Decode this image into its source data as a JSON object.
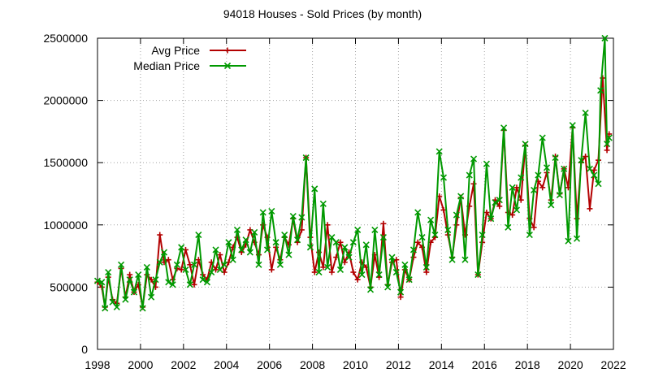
{
  "chart_data": {
    "type": "line",
    "title": "94018 Houses - Sold Prices (by month)",
    "xlabel": "",
    "ylabel": "",
    "xlim": [
      1998,
      2022
    ],
    "ylim": [
      0,
      2500000
    ],
    "x_ticks": [
      1998,
      2000,
      2002,
      2004,
      2006,
      2008,
      2010,
      2012,
      2014,
      2016,
      2018,
      2020,
      2022
    ],
    "y_ticks": [
      0,
      500000,
      1000000,
      1500000,
      2000000,
      2500000
    ],
    "grid": true,
    "legend_position": "top-left",
    "series": [
      {
        "name": "Avg Price",
        "color": "#b30000",
        "marker": "plus",
        "points": [
          [
            1998.0,
            540000
          ],
          [
            1998.2,
            500000
          ],
          [
            1998.35,
            340000
          ],
          [
            1998.5,
            580000
          ],
          [
            1998.7,
            400000
          ],
          [
            1998.9,
            370000
          ],
          [
            1999.1,
            650000
          ],
          [
            1999.3,
            420000
          ],
          [
            1999.5,
            600000
          ],
          [
            1999.7,
            460000
          ],
          [
            1999.9,
            520000
          ],
          [
            2000.1,
            340000
          ],
          [
            2000.3,
            600000
          ],
          [
            2000.5,
            560000
          ],
          [
            2000.7,
            500000
          ],
          [
            2000.9,
            920000
          ],
          [
            2001.1,
            700000
          ],
          [
            2001.3,
            720000
          ],
          [
            2001.5,
            560000
          ],
          [
            2001.7,
            650000
          ],
          [
            2001.9,
            640000
          ],
          [
            2002.1,
            800000
          ],
          [
            2002.3,
            680000
          ],
          [
            2002.5,
            520000
          ],
          [
            2002.7,
            720000
          ],
          [
            2002.9,
            600000
          ],
          [
            2003.1,
            560000
          ],
          [
            2003.3,
            700000
          ],
          [
            2003.5,
            640000
          ],
          [
            2003.7,
            760000
          ],
          [
            2003.9,
            620000
          ],
          [
            2004.1,
            700000
          ],
          [
            2004.3,
            820000
          ],
          [
            2004.5,
            900000
          ],
          [
            2004.7,
            780000
          ],
          [
            2004.9,
            840000
          ],
          [
            2005.1,
            960000
          ],
          [
            2005.3,
            860000
          ],
          [
            2005.5,
            760000
          ],
          [
            2005.7,
            1000000
          ],
          [
            2005.9,
            900000
          ],
          [
            2006.1,
            640000
          ],
          [
            2006.3,
            820000
          ],
          [
            2006.5,
            720000
          ],
          [
            2006.7,
            900000
          ],
          [
            2006.9,
            840000
          ],
          [
            2007.1,
            1050000
          ],
          [
            2007.3,
            860000
          ],
          [
            2007.5,
            960000
          ],
          [
            2007.7,
            1540000
          ],
          [
            2007.9,
            900000
          ],
          [
            2008.1,
            620000
          ],
          [
            2008.3,
            780000
          ],
          [
            2008.5,
            660000
          ],
          [
            2008.7,
            1000000
          ],
          [
            2008.9,
            620000
          ],
          [
            2009.1,
            740000
          ],
          [
            2009.3,
            860000
          ],
          [
            2009.5,
            700000
          ],
          [
            2009.7,
            780000
          ],
          [
            2009.9,
            620000
          ],
          [
            2010.1,
            560000
          ],
          [
            2010.3,
            700000
          ],
          [
            2010.5,
            660000
          ],
          [
            2010.7,
            500000
          ],
          [
            2010.9,
            760000
          ],
          [
            2011.1,
            580000
          ],
          [
            2011.3,
            1010000
          ],
          [
            2011.5,
            520000
          ],
          [
            2011.7,
            700000
          ],
          [
            2011.9,
            720000
          ],
          [
            2012.1,
            420000
          ],
          [
            2012.3,
            640000
          ],
          [
            2012.5,
            560000
          ],
          [
            2012.7,
            740000
          ],
          [
            2012.9,
            860000
          ],
          [
            2013.1,
            820000
          ],
          [
            2013.3,
            620000
          ],
          [
            2013.5,
            860000
          ],
          [
            2013.7,
            900000
          ],
          [
            2013.9,
            1230000
          ],
          [
            2014.1,
            1120000
          ],
          [
            2014.3,
            920000
          ],
          [
            2014.5,
            740000
          ],
          [
            2014.7,
            1000000
          ],
          [
            2014.9,
            1220000
          ],
          [
            2015.1,
            920000
          ],
          [
            2015.3,
            1150000
          ],
          [
            2015.5,
            1330000
          ],
          [
            2015.7,
            600000
          ],
          [
            2015.9,
            860000
          ],
          [
            2016.1,
            1100000
          ],
          [
            2016.3,
            1050000
          ],
          [
            2016.5,
            1200000
          ],
          [
            2016.7,
            1150000
          ],
          [
            2016.9,
            1760000
          ],
          [
            2017.1,
            1100000
          ],
          [
            2017.3,
            1080000
          ],
          [
            2017.5,
            1300000
          ],
          [
            2017.7,
            1200000
          ],
          [
            2017.9,
            1640000
          ],
          [
            2018.1,
            1050000
          ],
          [
            2018.3,
            980000
          ],
          [
            2018.5,
            1350000
          ],
          [
            2018.7,
            1300000
          ],
          [
            2018.9,
            1420000
          ],
          [
            2019.1,
            1200000
          ],
          [
            2019.3,
            1550000
          ],
          [
            2019.5,
            1250000
          ],
          [
            2019.7,
            1450000
          ],
          [
            2019.9,
            1300000
          ],
          [
            2020.1,
            1780000
          ],
          [
            2020.3,
            1050000
          ],
          [
            2020.5,
            1500000
          ],
          [
            2020.7,
            1550000
          ],
          [
            2020.9,
            1130000
          ],
          [
            2021.1,
            1440000
          ],
          [
            2021.3,
            1520000
          ],
          [
            2021.5,
            2180000
          ],
          [
            2021.7,
            1600000
          ],
          [
            2021.8,
            1730000
          ]
        ]
      },
      {
        "name": "Median Price",
        "color": "#009900",
        "marker": "cross",
        "points": [
          [
            1998.0,
            550000
          ],
          [
            1998.2,
            540000
          ],
          [
            1998.35,
            330000
          ],
          [
            1998.5,
            620000
          ],
          [
            1998.7,
            380000
          ],
          [
            1998.9,
            340000
          ],
          [
            1999.1,
            680000
          ],
          [
            1999.3,
            400000
          ],
          [
            1999.5,
            560000
          ],
          [
            1999.7,
            460000
          ],
          [
            1999.9,
            600000
          ],
          [
            2000.1,
            330000
          ],
          [
            2000.3,
            660000
          ],
          [
            2000.5,
            420000
          ],
          [
            2000.7,
            560000
          ],
          [
            2000.9,
            700000
          ],
          [
            2001.1,
            780000
          ],
          [
            2001.3,
            540000
          ],
          [
            2001.5,
            520000
          ],
          [
            2001.7,
            680000
          ],
          [
            2001.9,
            820000
          ],
          [
            2002.1,
            640000
          ],
          [
            2002.3,
            520000
          ],
          [
            2002.5,
            680000
          ],
          [
            2002.7,
            920000
          ],
          [
            2002.9,
            560000
          ],
          [
            2003.1,
            540000
          ],
          [
            2003.3,
            620000
          ],
          [
            2003.5,
            800000
          ],
          [
            2003.7,
            640000
          ],
          [
            2003.9,
            680000
          ],
          [
            2004.1,
            860000
          ],
          [
            2004.3,
            720000
          ],
          [
            2004.5,
            960000
          ],
          [
            2004.7,
            800000
          ],
          [
            2004.9,
            880000
          ],
          [
            2005.1,
            780000
          ],
          [
            2005.3,
            940000
          ],
          [
            2005.5,
            680000
          ],
          [
            2005.7,
            1100000
          ],
          [
            2005.9,
            800000
          ],
          [
            2006.1,
            1110000
          ],
          [
            2006.3,
            860000
          ],
          [
            2006.5,
            680000
          ],
          [
            2006.7,
            920000
          ],
          [
            2006.9,
            760000
          ],
          [
            2007.1,
            1070000
          ],
          [
            2007.3,
            880000
          ],
          [
            2007.5,
            1060000
          ],
          [
            2007.7,
            1540000
          ],
          [
            2007.9,
            820000
          ],
          [
            2008.1,
            1290000
          ],
          [
            2008.3,
            620000
          ],
          [
            2008.5,
            1170000
          ],
          [
            2008.7,
            660000
          ],
          [
            2008.9,
            900000
          ],
          [
            2009.1,
            860000
          ],
          [
            2009.3,
            640000
          ],
          [
            2009.5,
            820000
          ],
          [
            2009.7,
            740000
          ],
          [
            2009.9,
            860000
          ],
          [
            2010.1,
            960000
          ],
          [
            2010.3,
            600000
          ],
          [
            2010.5,
            840000
          ],
          [
            2010.7,
            480000
          ],
          [
            2010.9,
            960000
          ],
          [
            2011.1,
            600000
          ],
          [
            2011.3,
            900000
          ],
          [
            2011.5,
            500000
          ],
          [
            2011.7,
            740000
          ],
          [
            2011.9,
            620000
          ],
          [
            2012.1,
            460000
          ],
          [
            2012.3,
            680000
          ],
          [
            2012.5,
            560000
          ],
          [
            2012.7,
            800000
          ],
          [
            2012.9,
            1100000
          ],
          [
            2013.1,
            900000
          ],
          [
            2013.3,
            660000
          ],
          [
            2013.5,
            1040000
          ],
          [
            2013.7,
            920000
          ],
          [
            2013.9,
            1590000
          ],
          [
            2014.1,
            1380000
          ],
          [
            2014.3,
            960000
          ],
          [
            2014.5,
            720000
          ],
          [
            2014.7,
            1080000
          ],
          [
            2014.9,
            1230000
          ],
          [
            2015.1,
            720000
          ],
          [
            2015.3,
            1400000
          ],
          [
            2015.5,
            1530000
          ],
          [
            2015.7,
            600000
          ],
          [
            2015.9,
            920000
          ],
          [
            2016.1,
            1490000
          ],
          [
            2016.3,
            1050000
          ],
          [
            2016.5,
            1180000
          ],
          [
            2016.7,
            1200000
          ],
          [
            2016.9,
            1780000
          ],
          [
            2017.1,
            980000
          ],
          [
            2017.3,
            1300000
          ],
          [
            2017.5,
            1120000
          ],
          [
            2017.7,
            1380000
          ],
          [
            2017.9,
            1650000
          ],
          [
            2018.1,
            920000
          ],
          [
            2018.3,
            1280000
          ],
          [
            2018.5,
            1400000
          ],
          [
            2018.7,
            1700000
          ],
          [
            2018.9,
            1460000
          ],
          [
            2019.1,
            1160000
          ],
          [
            2019.3,
            1540000
          ],
          [
            2019.5,
            1240000
          ],
          [
            2019.7,
            1450000
          ],
          [
            2019.9,
            870000
          ],
          [
            2020.1,
            1800000
          ],
          [
            2020.3,
            890000
          ],
          [
            2020.5,
            1520000
          ],
          [
            2020.7,
            1900000
          ],
          [
            2020.9,
            1450000
          ],
          [
            2021.1,
            1400000
          ],
          [
            2021.3,
            1330000
          ],
          [
            2021.4,
            2080000
          ],
          [
            2021.6,
            2500000
          ],
          [
            2021.7,
            1650000
          ],
          [
            2021.8,
            1700000
          ]
        ]
      }
    ]
  }
}
